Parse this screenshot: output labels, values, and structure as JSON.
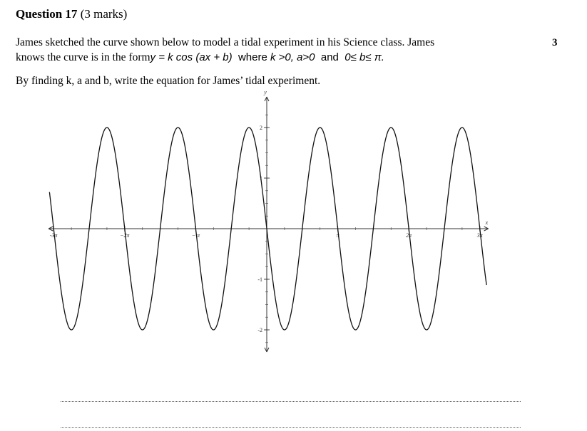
{
  "question": {
    "heading": "Question 17",
    "marks": "(3 marks)",
    "marks_right": "3",
    "line1": "James sketched the curve shown below to model a tidal experiment in his Science class. James",
    "line2_prefix": "knows the curve is in the form",
    "line2_eq": "y = k cos (ax + b)",
    "line2_where": "where",
    "line2_cond1": "k >0, a>0",
    "line2_and": "and",
    "line2_cond2": "0≤ b≤ π.",
    "line3": "By finding k, a and b, write the equation for James’ tidal experiment."
  },
  "chart_data": {
    "type": "line",
    "title": "",
    "xlabel": "x",
    "ylabel": "y",
    "xlim": [
      -9.65,
      9.8
    ],
    "ylim": [
      -2.3,
      2.3
    ],
    "function": "y = 2 cos(2x + π/2)",
    "amplitude": 2,
    "angular_frequency": 2,
    "phase": 1.5708,
    "x_ticks": [
      {
        "value": -9.4248,
        "label": "-3π"
      },
      {
        "value": -6.2832,
        "label": "−2π"
      },
      {
        "value": -3.1416,
        "label": "− π"
      },
      {
        "value": 3.1416,
        "label": "π"
      },
      {
        "value": 6.2832,
        "label": "2π"
      },
      {
        "value": 9.4248,
        "label": "3π"
      }
    ],
    "y_ticks": [
      {
        "value": 2,
        "label": "2"
      },
      {
        "value": 1,
        "label": "1"
      },
      {
        "value": -1,
        "label": "-1"
      },
      {
        "value": -2,
        "label": "-2"
      }
    ],
    "grid": false,
    "legend": "none"
  }
}
